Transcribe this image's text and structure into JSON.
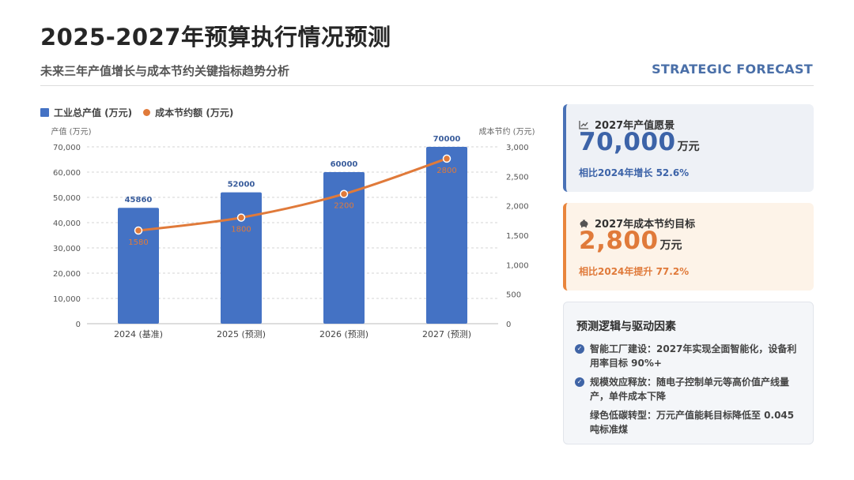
{
  "header": {
    "title": "2025-2027年预算执行情况预测",
    "subtitle": "未来三年产值增长与成本节约关键指标趋势分析",
    "tag": "STRATEGIC FORECAST"
  },
  "colors": {
    "bar": "#4472c4",
    "line": "#e07a3a",
    "accent_blue": "#3c63a8",
    "accent_orange": "#e07a3a"
  },
  "chart_data": {
    "type": "bar",
    "categories": [
      "2024 (基准)",
      "2025 (预测)",
      "2026 (预测)",
      "2027 (预测)"
    ],
    "series": [
      {
        "name": "工业总产值 (万元)",
        "type": "bar",
        "axis": "left",
        "values": [
          45860,
          52000,
          60000,
          70000
        ],
        "labels": [
          "45860",
          "52000",
          "60000",
          "70000"
        ]
      },
      {
        "name": "成本节约额 (万元)",
        "type": "line",
        "axis": "right",
        "values": [
          1580,
          1800,
          2200,
          2800
        ],
        "labels": [
          "1580",
          "1800",
          "2200",
          "2800"
        ]
      }
    ],
    "ylabel_left": "产值 (万元)",
    "ylabel_right": "成本节约 (万元)",
    "ylim_left": [
      0,
      70000
    ],
    "ylim_right": [
      0,
      3000
    ],
    "yticks_left": [
      "0",
      "10,000",
      "20,000",
      "30,000",
      "40,000",
      "50,000",
      "60,000",
      "70,000"
    ],
    "yticks_right": [
      "0",
      "500",
      "1,000",
      "1,500",
      "2,000",
      "2,500",
      "3,000"
    ],
    "grid": true,
    "legend": "top-left"
  },
  "kpi_value": {
    "icon": "chart-line-icon",
    "label": "2027年产值愿景",
    "value": "70,000",
    "unit": "万元",
    "note": "相比2024年增长 52.6%"
  },
  "kpi_cost": {
    "icon": "piggy-bank-icon",
    "label": "2027年成本节约目标",
    "value": "2,800",
    "unit": "万元",
    "note": "相比2024年提升 77.2%"
  },
  "logic": {
    "title": "预测逻辑与驱动因素",
    "items": [
      {
        "text": "智能工厂建设：2027年实现全面智能化，设备利用率目标 90%+",
        "checked": true
      },
      {
        "text": "规模效应释放：随电子控制单元等高价值产线量产，单件成本下降",
        "checked": true
      },
      {
        "text": "绿色低碳转型：万元产值能耗目标降低至 0.045 吨标准煤",
        "checked": false
      }
    ]
  }
}
